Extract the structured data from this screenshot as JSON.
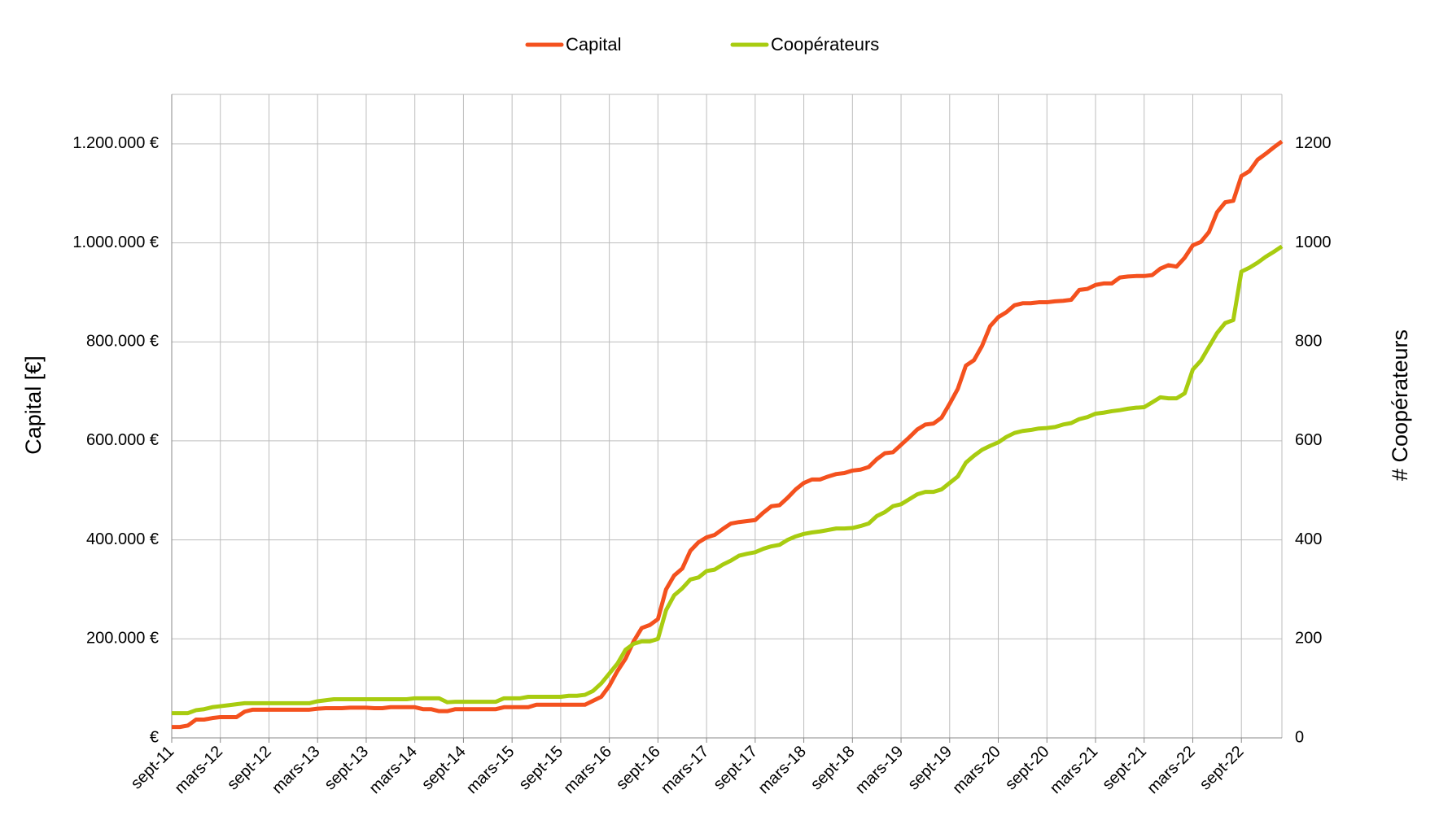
{
  "chart_data": {
    "type": "line",
    "y_label": "Capital [€]",
    "y2_label": "# Coopérateurs",
    "legend": "top",
    "grid": true,
    "categories": [
      "sept-11",
      null,
      null,
      null,
      null,
      null,
      "mars-12",
      null,
      null,
      null,
      null,
      null,
      "sept-12",
      null,
      null,
      null,
      null,
      null,
      "mars-13",
      null,
      null,
      null,
      null,
      null,
      "sept-13",
      null,
      null,
      null,
      null,
      null,
      "mars-14",
      null,
      null,
      null,
      null,
      null,
      "sept-14",
      null,
      null,
      null,
      null,
      null,
      "mars-15",
      null,
      null,
      null,
      null,
      null,
      "sept-15",
      null,
      null,
      null,
      null,
      null,
      "mars-16",
      null,
      null,
      null,
      null,
      null,
      "sept-16",
      null,
      null,
      null,
      null,
      null,
      "mars-17",
      null,
      null,
      null,
      null,
      null,
      "sept-17",
      null,
      null,
      null,
      null,
      null,
      "mars-18",
      null,
      null,
      null,
      null,
      null,
      "sept-18",
      null,
      null,
      null,
      null,
      null,
      "mars-19",
      null,
      null,
      null,
      null,
      null,
      "sept-19",
      null,
      null,
      null,
      null,
      null,
      "mars-20",
      null,
      null,
      null,
      null,
      null,
      "sept-20",
      null,
      null,
      null,
      null,
      null,
      "mars-21",
      null,
      null,
      null,
      null,
      null,
      "sept-21",
      null,
      null,
      null,
      null,
      null,
      "mars-22",
      null,
      null,
      null,
      null,
      null,
      "sept-22",
      null,
      null,
      null,
      null,
      null
    ],
    "ylim": [
      0,
      1300000
    ],
    "yticks": [
      {
        "value": 0,
        "label": "€"
      },
      {
        "value": 200000,
        "label": "200.000 €"
      },
      {
        "value": 400000,
        "label": "400.000 €"
      },
      {
        "value": 600000,
        "label": "600.000 €"
      },
      {
        "value": 800000,
        "label": "800.000 €"
      },
      {
        "value": 1000000,
        "label": "1.000.000 €"
      },
      {
        "value": 1200000,
        "label": "1.200.000 €"
      }
    ],
    "y2lim": [
      0,
      1300
    ],
    "y2ticks": [
      0,
      200,
      400,
      600,
      800,
      1000,
      1200
    ],
    "series": [
      {
        "name": "Capital",
        "color": "#f4511e",
        "values": [
          22000,
          22000,
          25000,
          37000,
          37000,
          40000,
          42000,
          42000,
          42000,
          53000,
          57000,
          57000,
          57000,
          57000,
          57000,
          57000,
          57000,
          57000,
          59000,
          60000,
          60000,
          60000,
          61000,
          61000,
          61000,
          60000,
          60000,
          62000,
          62000,
          62000,
          62000,
          58000,
          58000,
          54000,
          54000,
          58000,
          58000,
          58000,
          58000,
          58000,
          58000,
          62000,
          62000,
          62000,
          62000,
          67000,
          67000,
          67000,
          67000,
          67000,
          67000,
          67000,
          75000,
          83000,
          105000,
          135000,
          160000,
          195000,
          222000,
          228000,
          240000,
          300000,
          328000,
          342000,
          378000,
          395000,
          405000,
          410000,
          422000,
          433000,
          436000,
          438000,
          440000,
          455000,
          468000,
          470000,
          485000,
          502000,
          515000,
          522000,
          522000,
          528000,
          533000,
          535000,
          540000,
          542000,
          547000,
          563000,
          575000,
          577000,
          592000,
          607000,
          623000,
          633000,
          635000,
          647000,
          675000,
          705000,
          752000,
          763000,
          792000,
          832000,
          850000,
          860000,
          874000,
          878000,
          878000,
          880000,
          880000,
          882000,
          883000,
          885000,
          905000,
          907000,
          915000,
          918000,
          918000,
          930000,
          932000,
          933000,
          933000,
          935000,
          948000,
          955000,
          952000,
          970000,
          995000,
          1002000,
          1022000,
          1062000,
          1082000,
          1085000,
          1135000,
          1145000,
          1168000,
          1180000,
          1193000,
          1205000
        ]
      },
      {
        "name": "Coopérateurs",
        "color": "#a8cc10",
        "axis": "y2",
        "values": [
          50,
          50,
          50,
          56,
          58,
          62,
          64,
          66,
          68,
          70,
          70,
          70,
          70,
          70,
          70,
          70,
          70,
          70,
          74,
          76,
          78,
          78,
          78,
          78,
          78,
          78,
          78,
          78,
          78,
          78,
          80,
          80,
          80,
          80,
          72,
          73,
          73,
          73,
          73,
          73,
          73,
          80,
          80,
          80,
          83,
          83,
          83,
          83,
          83,
          85,
          85,
          87,
          95,
          110,
          130,
          150,
          178,
          190,
          195,
          195,
          200,
          258,
          288,
          302,
          320,
          324,
          337,
          340,
          350,
          358,
          368,
          372,
          375,
          382,
          387,
          390,
          400,
          407,
          412,
          415,
          417,
          420,
          423,
          423,
          424,
          428,
          433,
          448,
          456,
          468,
          472,
          482,
          492,
          497,
          497,
          502,
          515,
          528,
          556,
          570,
          582,
          590,
          597,
          608,
          616,
          620,
          622,
          625,
          626,
          628,
          633,
          636,
          644,
          648,
          655,
          657,
          660,
          662,
          665,
          667,
          668,
          678,
          688,
          686,
          686,
          696,
          744,
          762,
          790,
          818,
          838,
          844,
          942,
          950,
          960,
          972,
          982,
          993
        ]
      }
    ]
  }
}
